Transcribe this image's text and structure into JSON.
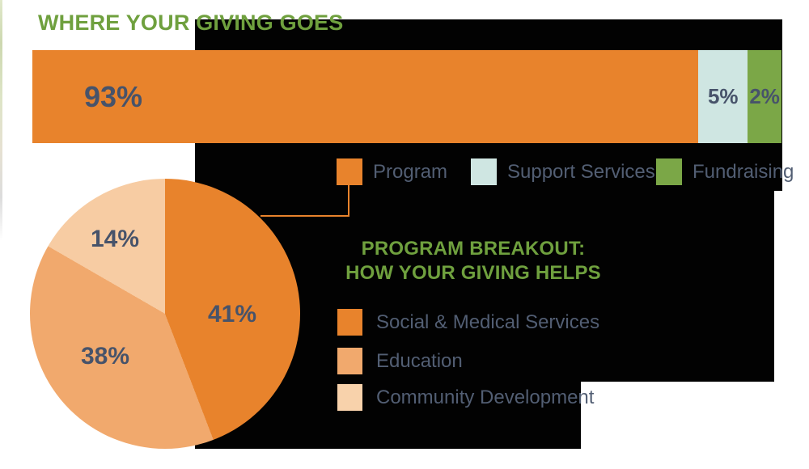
{
  "titles": {
    "main": "WHERE YOUR GIVING GOES",
    "breakout_line1": "PROGRAM BREAKOUT:",
    "breakout_line2": "HOW YOUR GIVING HELPS"
  },
  "colors": {
    "orange": "#E8832C",
    "orange_medium": "#F1A96D",
    "orange_light": "#F7CCA3",
    "teal": "#CFE6E2",
    "green": "#7BA747",
    "title_green": "#6FA03E",
    "label_slate": "#47536A",
    "legend_text": "#525E73",
    "background_block": "#020202"
  },
  "chart_data": [
    {
      "type": "bar",
      "orientation": "horizontal-stacked",
      "title": "WHERE YOUR GIVING GOES",
      "categories": [
        "Program",
        "Support Services",
        "Fundraising"
      ],
      "values": [
        93,
        5,
        2
      ],
      "unit": "%",
      "labels": [
        "93%",
        "5%",
        "2%"
      ],
      "colors": [
        "#E8832C",
        "#CFE6E2",
        "#7BA747"
      ],
      "display_widths_pct": [
        88.9,
        6.6,
        4.5
      ],
      "legend_position": "below"
    },
    {
      "type": "pie",
      "title": "PROGRAM BREAKOUT: HOW YOUR GIVING HELPS",
      "categories": [
        "Social & Medical Services",
        "Education",
        "Community Development"
      ],
      "values": [
        41,
        38,
        14
      ],
      "unit": "%",
      "labels": [
        "41%",
        "38%",
        "14%"
      ],
      "colors": [
        "#E8832C",
        "#F1A96D",
        "#F7CCA3"
      ],
      "start_angle_deg": 0,
      "direction": "clockwise",
      "display_angles_deg": [
        159,
        141,
        60
      ],
      "legend_position": "right"
    }
  ],
  "legend1": {
    "items": [
      {
        "label": "Program",
        "color": "#E8832C"
      },
      {
        "label": "Support Services",
        "color": "#CFE6E2"
      },
      {
        "label": "Fundraising",
        "color": "#7BA747"
      }
    ]
  },
  "legend2": {
    "items": [
      {
        "label": "Social & Medical Services",
        "color": "#E8832C"
      },
      {
        "label": "Education",
        "color": "#F1A96D"
      },
      {
        "label": "Community Development",
        "color": "#F8D2AB"
      }
    ]
  }
}
